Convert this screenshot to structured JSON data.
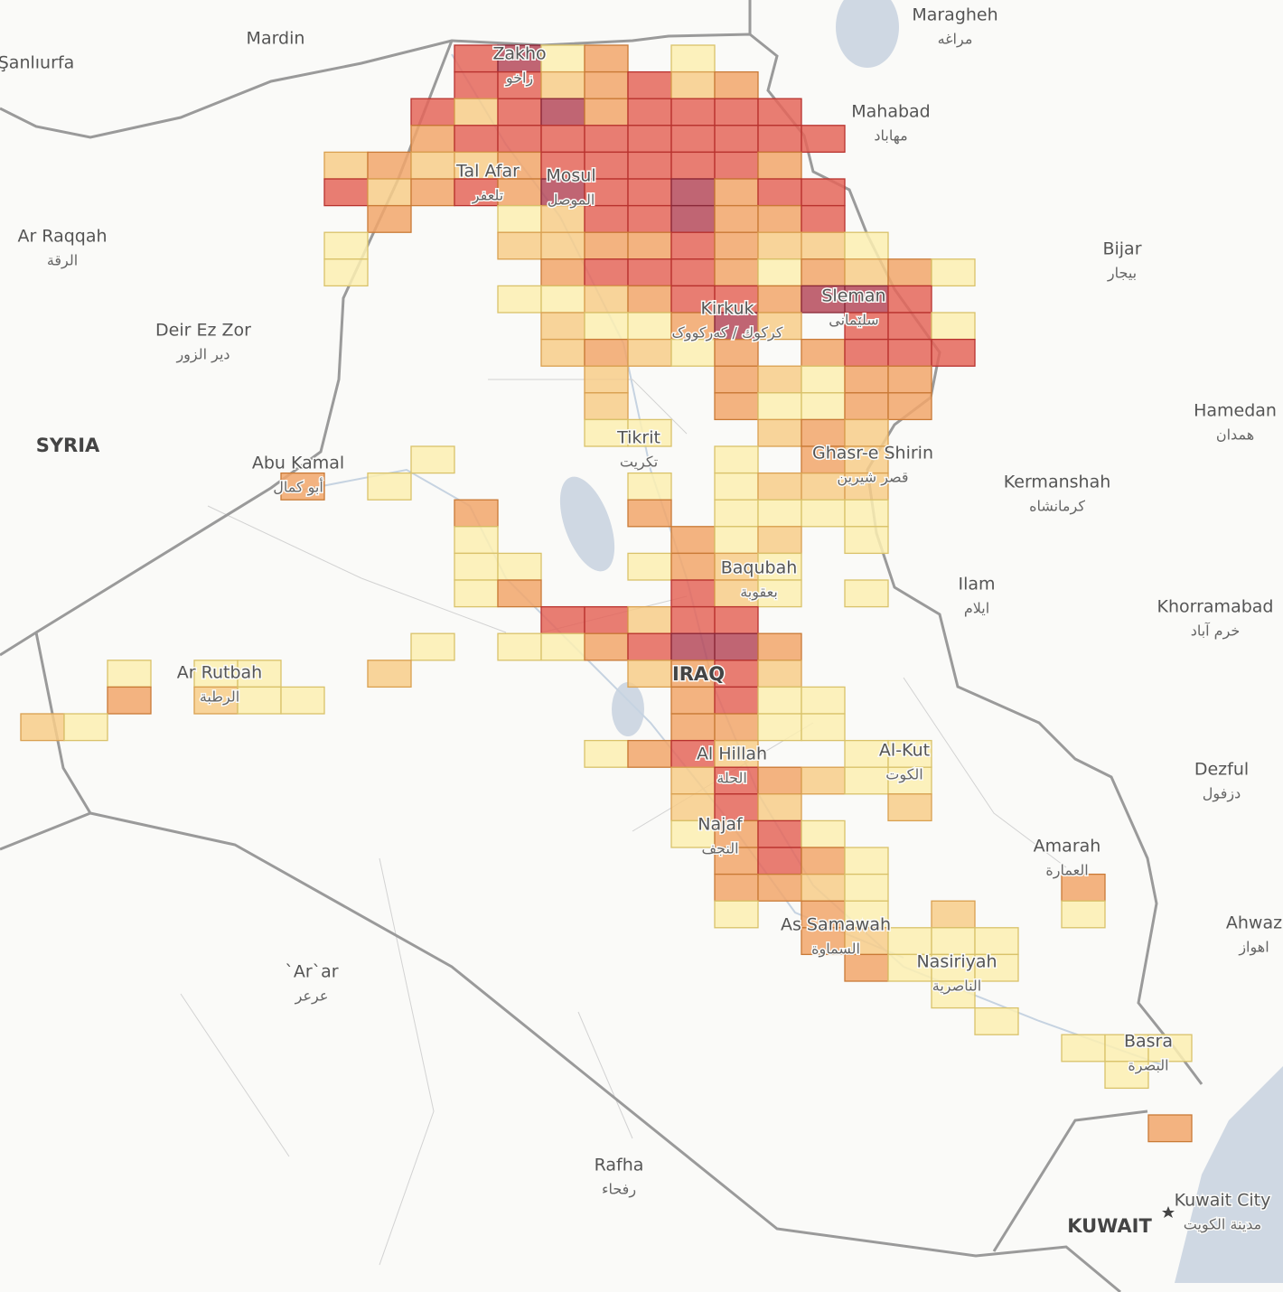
{
  "places": [
    {
      "name": "Maragheh",
      "native": "مراغه"
    },
    {
      "name": "Mardin"
    },
    {
      "name": "Şanlıurfa"
    },
    {
      "name": "Zakho",
      "native": "زاخو"
    },
    {
      "name": "Mahabad",
      "native": "مهاباد"
    },
    {
      "name": "Tal Afar",
      "native": "تلعفر"
    },
    {
      "name": "Mosul",
      "native": "الموصل"
    },
    {
      "name": "Ar Raqqah",
      "native": "الرقة"
    },
    {
      "name": "Bijar",
      "native": "بیجار"
    },
    {
      "name": "Kirkuk",
      "native": "كركوك / کەرکووک"
    },
    {
      "name": "Sleman",
      "native": "سلێمانی"
    },
    {
      "name": "Deir Ez Zor",
      "native": "دير الزور"
    },
    {
      "name": "Hamedan",
      "native": "همدان"
    },
    {
      "name": "Tikrit",
      "native": "تكريت"
    },
    {
      "name": "Abu Kamal",
      "native": "أبو كمال"
    },
    {
      "name": "Ghasr-e Shirin",
      "native": "قصر شیرین"
    },
    {
      "name": "Kermanshah",
      "native": "كرمانشاه"
    },
    {
      "name": "Baqubah",
      "native": "بعقوبة"
    },
    {
      "name": "Ilam",
      "native": "ایلام"
    },
    {
      "name": "Khorramabad",
      "native": "خرم آباد"
    },
    {
      "name": "Ar Rutbah",
      "native": "الرطبة"
    },
    {
      "name": "Al Hillah",
      "native": "الحلة"
    },
    {
      "name": "Al-Kut",
      "native": "الكوت"
    },
    {
      "name": "Dezful",
      "native": "دزفول"
    },
    {
      "name": "Najaf",
      "native": "النجف"
    },
    {
      "name": "Amarah",
      "native": "العمارة"
    },
    {
      "name": "As Samawah",
      "native": "السماوة"
    },
    {
      "name": "Ahwaz",
      "native": "اهواز"
    },
    {
      "name": "Nasiriyah",
      "native": "الناصرية"
    },
    {
      "name": "`Ar`ar",
      "native": "عرعر"
    },
    {
      "name": "Basra",
      "native": "البصرة"
    },
    {
      "name": "Rafha",
      "native": "رفحاء"
    },
    {
      "name": "Kuwait City",
      "native": "مدينة الكويت"
    }
  ],
  "countries": [
    "SYRIA",
    "IRAQ",
    "KUWAIT"
  ],
  "level_colors": [
    "#fcefb2",
    "#f7cd89",
    "#f1a66b",
    "#e4665a",
    "#b54a5c"
  ],
  "level_strokes": [
    "#d9c26a",
    "#d9a050",
    "#c97a36",
    "#b8322e",
    "#8a2838"
  ],
  "cells": [
    [
      0,
      10,
      4
    ],
    [
      0,
      11,
      5
    ],
    [
      0,
      12,
      1
    ],
    [
      0,
      13,
      3
    ],
    [
      0,
      15,
      1
    ],
    [
      1,
      10,
      4
    ],
    [
      1,
      11,
      4
    ],
    [
      1,
      12,
      2
    ],
    [
      1,
      13,
      3
    ],
    [
      1,
      14,
      4
    ],
    [
      1,
      15,
      2
    ],
    [
      1,
      16,
      3
    ],
    [
      2,
      9,
      4
    ],
    [
      2,
      10,
      2
    ],
    [
      2,
      11,
      4
    ],
    [
      2,
      12,
      5
    ],
    [
      2,
      13,
      3
    ],
    [
      2,
      14,
      4
    ],
    [
      2,
      15,
      4
    ],
    [
      2,
      16,
      4
    ],
    [
      2,
      17,
      4
    ],
    [
      3,
      9,
      3
    ],
    [
      3,
      10,
      4
    ],
    [
      3,
      11,
      4
    ],
    [
      3,
      12,
      4
    ],
    [
      3,
      13,
      4
    ],
    [
      3,
      14,
      4
    ],
    [
      3,
      15,
      4
    ],
    [
      3,
      16,
      4
    ],
    [
      3,
      17,
      4
    ],
    [
      3,
      18,
      4
    ],
    [
      4,
      7,
      2
    ],
    [
      4,
      8,
      3
    ],
    [
      4,
      9,
      2
    ],
    [
      4,
      10,
      2
    ],
    [
      4,
      11,
      3
    ],
    [
      4,
      12,
      4
    ],
    [
      4,
      13,
      4
    ],
    [
      4,
      14,
      4
    ],
    [
      4,
      15,
      4
    ],
    [
      4,
      16,
      4
    ],
    [
      4,
      17,
      3
    ],
    [
      5,
      7,
      4
    ],
    [
      5,
      8,
      2
    ],
    [
      5,
      9,
      3
    ],
    [
      5,
      10,
      4
    ],
    [
      5,
      11,
      3
    ],
    [
      5,
      12,
      5
    ],
    [
      5,
      13,
      4
    ],
    [
      5,
      14,
      4
    ],
    [
      5,
      15,
      5
    ],
    [
      5,
      16,
      3
    ],
    [
      5,
      17,
      4
    ],
    [
      5,
      18,
      4
    ],
    [
      6,
      8,
      3
    ],
    [
      6,
      11,
      1
    ],
    [
      6,
      12,
      2
    ],
    [
      6,
      13,
      4
    ],
    [
      6,
      14,
      4
    ],
    [
      6,
      15,
      5
    ],
    [
      6,
      16,
      3
    ],
    [
      6,
      17,
      3
    ],
    [
      6,
      18,
      4
    ],
    [
      7,
      7,
      1
    ],
    [
      7,
      11,
      2
    ],
    [
      7,
      12,
      2
    ],
    [
      7,
      13,
      3
    ],
    [
      7,
      14,
      3
    ],
    [
      7,
      15,
      4
    ],
    [
      7,
      16,
      3
    ],
    [
      7,
      17,
      2
    ],
    [
      7,
      18,
      2
    ],
    [
      7,
      19,
      1
    ],
    [
      8,
      7,
      1
    ],
    [
      8,
      12,
      3
    ],
    [
      8,
      13,
      4
    ],
    [
      8,
      14,
      4
    ],
    [
      8,
      15,
      4
    ],
    [
      8,
      16,
      3
    ],
    [
      8,
      17,
      1
    ],
    [
      8,
      18,
      3
    ],
    [
      8,
      19,
      2
    ],
    [
      8,
      20,
      3
    ],
    [
      8,
      21,
      1
    ],
    [
      9,
      11,
      1
    ],
    [
      9,
      12,
      1
    ],
    [
      9,
      13,
      2
    ],
    [
      9,
      14,
      3
    ],
    [
      9,
      15,
      4
    ],
    [
      9,
      16,
      4
    ],
    [
      9,
      17,
      3
    ],
    [
      9,
      18,
      5
    ],
    [
      9,
      19,
      5
    ],
    [
      9,
      20,
      4
    ],
    [
      10,
      12,
      2
    ],
    [
      10,
      13,
      1
    ],
    [
      10,
      14,
      1
    ],
    [
      10,
      15,
      3
    ],
    [
      10,
      16,
      5
    ],
    [
      10,
      17,
      2
    ],
    [
      10,
      19,
      4
    ],
    [
      10,
      20,
      4
    ],
    [
      10,
      21,
      1
    ],
    [
      11,
      12,
      2
    ],
    [
      11,
      13,
      3
    ],
    [
      11,
      14,
      2
    ],
    [
      11,
      15,
      1
    ],
    [
      11,
      16,
      3
    ],
    [
      11,
      18,
      3
    ],
    [
      11,
      19,
      4
    ],
    [
      11,
      20,
      4
    ],
    [
      11,
      21,
      4
    ],
    [
      12,
      13,
      2
    ],
    [
      12,
      16,
      3
    ],
    [
      12,
      17,
      2
    ],
    [
      12,
      18,
      1
    ],
    [
      12,
      19,
      3
    ],
    [
      12,
      20,
      3
    ],
    [
      13,
      13,
      2
    ],
    [
      13,
      16,
      3
    ],
    [
      13,
      17,
      1
    ],
    [
      13,
      18,
      1
    ],
    [
      13,
      19,
      3
    ],
    [
      13,
      20,
      3
    ],
    [
      14,
      13,
      1
    ],
    [
      14,
      14,
      1
    ],
    [
      14,
      17,
      2
    ],
    [
      14,
      18,
      3
    ],
    [
      14,
      19,
      2
    ],
    [
      15,
      9,
      1
    ],
    [
      15,
      16,
      1
    ],
    [
      15,
      18,
      3
    ],
    [
      15,
      19,
      2
    ],
    [
      16,
      6,
      3
    ],
    [
      16,
      8,
      1
    ],
    [
      16,
      14,
      1
    ],
    [
      16,
      16,
      1
    ],
    [
      16,
      17,
      2
    ],
    [
      16,
      18,
      2
    ],
    [
      16,
      19,
      2
    ],
    [
      17,
      10,
      3
    ],
    [
      17,
      14,
      3
    ],
    [
      17,
      16,
      1
    ],
    [
      17,
      17,
      1
    ],
    [
      17,
      18,
      1
    ],
    [
      17,
      19,
      1
    ],
    [
      18,
      10,
      1
    ],
    [
      18,
      15,
      3
    ],
    [
      18,
      16,
      1
    ],
    [
      18,
      17,
      2
    ],
    [
      18,
      19,
      1
    ],
    [
      19,
      10,
      1
    ],
    [
      19,
      11,
      1
    ],
    [
      19,
      14,
      1
    ],
    [
      19,
      15,
      3
    ],
    [
      19,
      16,
      2
    ],
    [
      19,
      17,
      1
    ],
    [
      20,
      10,
      1
    ],
    [
      20,
      11,
      3
    ],
    [
      20,
      15,
      4
    ],
    [
      20,
      16,
      2
    ],
    [
      20,
      17,
      1
    ],
    [
      20,
      19,
      1
    ],
    [
      21,
      12,
      4
    ],
    [
      21,
      13,
      4
    ],
    [
      21,
      14,
      2
    ],
    [
      21,
      15,
      4
    ],
    [
      21,
      16,
      4
    ],
    [
      22,
      9,
      1
    ],
    [
      22,
      11,
      1
    ],
    [
      22,
      12,
      1
    ],
    [
      22,
      13,
      3
    ],
    [
      22,
      14,
      4
    ],
    [
      22,
      15,
      5
    ],
    [
      22,
      16,
      5
    ],
    [
      22,
      17,
      3
    ],
    [
      23,
      2,
      1
    ],
    [
      23,
      4,
      1
    ],
    [
      23,
      5,
      1
    ],
    [
      23,
      8,
      2
    ],
    [
      23,
      14,
      2
    ],
    [
      23,
      15,
      3
    ],
    [
      23,
      16,
      4
    ],
    [
      23,
      17,
      2
    ],
    [
      24,
      2,
      3
    ],
    [
      24,
      4,
      2
    ],
    [
      24,
      5,
      1
    ],
    [
      24,
      6,
      1
    ],
    [
      24,
      15,
      3
    ],
    [
      24,
      16,
      4
    ],
    [
      24,
      17,
      1
    ],
    [
      24,
      18,
      1
    ],
    [
      25,
      0,
      2
    ],
    [
      25,
      1,
      1
    ],
    [
      25,
      15,
      3
    ],
    [
      25,
      16,
      3
    ],
    [
      25,
      17,
      1
    ],
    [
      25,
      18,
      1
    ],
    [
      26,
      13,
      1
    ],
    [
      26,
      14,
      3
    ],
    [
      26,
      15,
      4
    ],
    [
      26,
      16,
      2
    ],
    [
      26,
      19,
      1
    ],
    [
      26,
      20,
      1
    ],
    [
      27,
      15,
      2
    ],
    [
      27,
      16,
      4
    ],
    [
      27,
      17,
      3
    ],
    [
      27,
      18,
      2
    ],
    [
      27,
      19,
      1
    ],
    [
      27,
      20,
      1
    ],
    [
      28,
      15,
      2
    ],
    [
      28,
      16,
      4
    ],
    [
      28,
      17,
      2
    ],
    [
      28,
      20,
      2
    ],
    [
      29,
      15,
      1
    ],
    [
      29,
      16,
      3
    ],
    [
      29,
      17,
      4
    ],
    [
      29,
      18,
      1
    ],
    [
      30,
      16,
      3
    ],
    [
      30,
      17,
      4
    ],
    [
      30,
      18,
      3
    ],
    [
      30,
      19,
      1
    ],
    [
      31,
      16,
      3
    ],
    [
      31,
      17,
      3
    ],
    [
      31,
      18,
      2
    ],
    [
      31,
      19,
      1
    ],
    [
      31,
      24,
      3
    ],
    [
      32,
      16,
      1
    ],
    [
      32,
      18,
      3
    ],
    [
      32,
      19,
      1
    ],
    [
      32,
      21,
      2
    ],
    [
      32,
      24,
      1
    ],
    [
      33,
      18,
      3
    ],
    [
      33,
      19,
      2
    ],
    [
      33,
      20,
      1
    ],
    [
      33,
      21,
      1
    ],
    [
      33,
      22,
      1
    ],
    [
      34,
      19,
      3
    ],
    [
      34,
      20,
      1
    ],
    [
      34,
      21,
      1
    ],
    [
      34,
      22,
      1
    ],
    [
      35,
      21,
      1
    ],
    [
      36,
      22,
      1
    ],
    [
      37,
      24,
      1
    ],
    [
      37,
      25,
      1
    ],
    [
      37,
      26,
      1
    ],
    [
      38,
      25,
      1
    ],
    [
      40,
      26,
      3
    ]
  ]
}
